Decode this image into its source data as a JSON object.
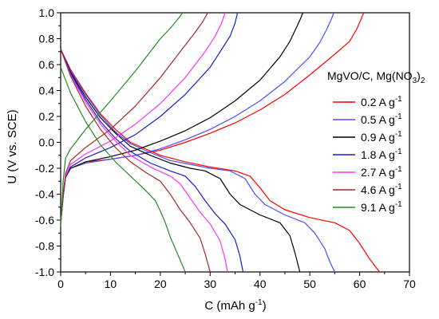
{
  "chart_data": {
    "type": "line",
    "title": "",
    "xlabel": "C (mAh g",
    "xlabel_sup": "-1",
    "xlabel_tail": ")",
    "ylabel": "U (V vs. SCE)",
    "xlim": [
      0,
      70
    ],
    "ylim": [
      -1.0,
      1.0
    ],
    "x_ticks": [
      0,
      10,
      20,
      30,
      40,
      50,
      60,
      70
    ],
    "x_tick_labels": [
      "0",
      "10",
      "20",
      "30",
      "40",
      "50",
      "60",
      "70"
    ],
    "y_ticks": [
      -1.0,
      -0.8,
      -0.6,
      -0.4,
      -0.2,
      0.0,
      0.2,
      0.4,
      0.6,
      0.8,
      1.0
    ],
    "y_tick_labels": [
      "-1.0",
      "-0.8",
      "-0.6",
      "-0.4",
      "-0.2",
      "0.0",
      "0.2",
      "0.4",
      "0.6",
      "0.8",
      "1.0"
    ],
    "grid": false,
    "legend_position": "right",
    "legend_title": {
      "prefix": "MgVO/C, Mg(NO",
      "sub1": "3",
      "mid": ")",
      "sub2": "2"
    },
    "unit_text": "A g",
    "unit_sup": "-1",
    "series": [
      {
        "name": "0.2",
        "color": "#ff0000",
        "discharge": [
          [
            0,
            0.72
          ],
          [
            2,
            0.56
          ],
          [
            5,
            0.38
          ],
          [
            8,
            0.22
          ],
          [
            11,
            0.1
          ],
          [
            14,
            0.0
          ],
          [
            17,
            -0.05
          ],
          [
            20,
            -0.1
          ],
          [
            25,
            -0.15
          ],
          [
            30,
            -0.19
          ],
          [
            35,
            -0.22
          ],
          [
            38,
            -0.26
          ],
          [
            40,
            -0.35
          ],
          [
            42,
            -0.45
          ],
          [
            45,
            -0.52
          ],
          [
            50,
            -0.58
          ],
          [
            55,
            -0.62
          ],
          [
            58,
            -0.68
          ],
          [
            60,
            -0.78
          ],
          [
            62,
            -0.9
          ],
          [
            64,
            -1.0
          ]
        ],
        "charge": [
          [
            0,
            -0.6
          ],
          [
            0.5,
            -0.4
          ],
          [
            1,
            -0.25
          ],
          [
            2,
            -0.2
          ],
          [
            5,
            -0.15
          ],
          [
            10,
            -0.13
          ],
          [
            15,
            -0.1
          ],
          [
            20,
            -0.06
          ],
          [
            25,
            0.0
          ],
          [
            30,
            0.07
          ],
          [
            35,
            0.15
          ],
          [
            40,
            0.25
          ],
          [
            45,
            0.37
          ],
          [
            50,
            0.52
          ],
          [
            55,
            0.68
          ],
          [
            58,
            0.78
          ],
          [
            59.5,
            0.88
          ],
          [
            60.3,
            0.95
          ],
          [
            60.8,
            1.0
          ]
        ]
      },
      {
        "name": "0.5",
        "color": "#4d4dff",
        "discharge": [
          [
            0,
            0.72
          ],
          [
            2,
            0.55
          ],
          [
            5,
            0.37
          ],
          [
            8,
            0.21
          ],
          [
            11,
            0.08
          ],
          [
            14,
            -0.01
          ],
          [
            18,
            -0.08
          ],
          [
            22,
            -0.14
          ],
          [
            26,
            -0.17
          ],
          [
            30,
            -0.2
          ],
          [
            34,
            -0.22
          ],
          [
            37,
            -0.28
          ],
          [
            39,
            -0.4
          ],
          [
            41,
            -0.48
          ],
          [
            45,
            -0.56
          ],
          [
            49,
            -0.62
          ],
          [
            51,
            -0.7
          ],
          [
            53,
            -0.82
          ],
          [
            54,
            -0.92
          ],
          [
            55,
            -1.0
          ]
        ],
        "charge": [
          [
            0,
            -0.62
          ],
          [
            0.5,
            -0.4
          ],
          [
            1,
            -0.25
          ],
          [
            2,
            -0.2
          ],
          [
            5,
            -0.16
          ],
          [
            10,
            -0.13
          ],
          [
            15,
            -0.1
          ],
          [
            20,
            -0.05
          ],
          [
            25,
            0.02
          ],
          [
            30,
            0.1
          ],
          [
            35,
            0.2
          ],
          [
            40,
            0.32
          ],
          [
            45,
            0.47
          ],
          [
            50,
            0.66
          ],
          [
            52,
            0.77
          ],
          [
            53.5,
            0.88
          ],
          [
            54.3,
            0.95
          ],
          [
            54.8,
            1.0
          ]
        ]
      },
      {
        "name": "0.9",
        "color": "#000000",
        "discharge": [
          [
            0,
            0.72
          ],
          [
            2,
            0.54
          ],
          [
            5,
            0.35
          ],
          [
            8,
            0.19
          ],
          [
            11,
            0.07
          ],
          [
            14,
            -0.03
          ],
          [
            18,
            -0.1
          ],
          [
            22,
            -0.16
          ],
          [
            26,
            -0.2
          ],
          [
            29,
            -0.22
          ],
          [
            32,
            -0.28
          ],
          [
            34,
            -0.4
          ],
          [
            36,
            -0.48
          ],
          [
            40,
            -0.56
          ],
          [
            44,
            -0.62
          ],
          [
            46,
            -0.72
          ],
          [
            47,
            -0.85
          ],
          [
            48,
            -1.0
          ]
        ],
        "charge": [
          [
            0,
            -0.63
          ],
          [
            0.5,
            -0.42
          ],
          [
            1,
            -0.27
          ],
          [
            2,
            -0.2
          ],
          [
            5,
            -0.15
          ],
          [
            10,
            -0.11
          ],
          [
            15,
            -0.06
          ],
          [
            20,
            0.01
          ],
          [
            25,
            0.09
          ],
          [
            30,
            0.19
          ],
          [
            35,
            0.32
          ],
          [
            40,
            0.48
          ],
          [
            44,
            0.66
          ],
          [
            46,
            0.78
          ],
          [
            47.5,
            0.9
          ],
          [
            48.2,
            0.96
          ],
          [
            48.6,
            1.0
          ]
        ]
      },
      {
        "name": "1.8",
        "color": "#1a1acc",
        "discharge": [
          [
            0,
            0.72
          ],
          [
            2,
            0.53
          ],
          [
            5,
            0.33
          ],
          [
            8,
            0.16
          ],
          [
            11,
            0.03
          ],
          [
            14,
            -0.07
          ],
          [
            18,
            -0.16
          ],
          [
            22,
            -0.22
          ],
          [
            25,
            -0.26
          ],
          [
            27,
            -0.34
          ],
          [
            29,
            -0.45
          ],
          [
            31,
            -0.55
          ],
          [
            33,
            -0.63
          ],
          [
            35,
            -0.75
          ],
          [
            36,
            -0.88
          ],
          [
            36.6,
            -1.0
          ]
        ],
        "charge": [
          [
            0,
            -0.63
          ],
          [
            0.5,
            -0.42
          ],
          [
            1,
            -0.27
          ],
          [
            2,
            -0.19
          ],
          [
            5,
            -0.12
          ],
          [
            10,
            -0.04
          ],
          [
            15,
            0.06
          ],
          [
            20,
            0.2
          ],
          [
            25,
            0.37
          ],
          [
            30,
            0.58
          ],
          [
            32,
            0.7
          ],
          [
            34,
            0.82
          ],
          [
            35,
            0.92
          ],
          [
            35.5,
            1.0
          ]
        ]
      },
      {
        "name": "2.7",
        "color": "#ff33ff",
        "discharge": [
          [
            0,
            0.72
          ],
          [
            2,
            0.52
          ],
          [
            5,
            0.31
          ],
          [
            8,
            0.14
          ],
          [
            11,
            0.01
          ],
          [
            14,
            -0.1
          ],
          [
            18,
            -0.19
          ],
          [
            22,
            -0.26
          ],
          [
            24,
            -0.32
          ],
          [
            26,
            -0.43
          ],
          [
            28,
            -0.54
          ],
          [
            30,
            -0.63
          ],
          [
            32,
            -0.76
          ],
          [
            33,
            -0.9
          ],
          [
            33.5,
            -1.0
          ]
        ],
        "charge": [
          [
            0,
            -0.63
          ],
          [
            0.5,
            -0.42
          ],
          [
            1,
            -0.26
          ],
          [
            2,
            -0.17
          ],
          [
            5,
            -0.09
          ],
          [
            10,
            0.01
          ],
          [
            15,
            0.14
          ],
          [
            20,
            0.3
          ],
          [
            25,
            0.5
          ],
          [
            29,
            0.7
          ],
          [
            31,
            0.82
          ],
          [
            32.3,
            0.92
          ],
          [
            33,
            1.0
          ]
        ]
      },
      {
        "name": "4.6",
        "color": "#a52a2a",
        "discharge": [
          [
            0,
            0.72
          ],
          [
            2,
            0.51
          ],
          [
            5,
            0.28
          ],
          [
            8,
            0.1
          ],
          [
            11,
            -0.04
          ],
          [
            14,
            -0.15
          ],
          [
            17,
            -0.23
          ],
          [
            20,
            -0.3
          ],
          [
            22,
            -0.4
          ],
          [
            24,
            -0.52
          ],
          [
            26,
            -0.62
          ],
          [
            28,
            -0.74
          ],
          [
            29,
            -0.86
          ],
          [
            30,
            -1.0
          ]
        ],
        "charge": [
          [
            0,
            -0.64
          ],
          [
            0.5,
            -0.42
          ],
          [
            1,
            -0.24
          ],
          [
            2,
            -0.14
          ],
          [
            5,
            -0.04
          ],
          [
            10,
            0.1
          ],
          [
            15,
            0.28
          ],
          [
            20,
            0.5
          ],
          [
            24,
            0.7
          ],
          [
            27,
            0.85
          ],
          [
            28.5,
            0.93
          ],
          [
            29.5,
            1.0
          ]
        ]
      },
      {
        "name": "9.1",
        "color": "#228b22",
        "discharge": [
          [
            0,
            0.58
          ],
          [
            2,
            0.38
          ],
          [
            5,
            0.16
          ],
          [
            8,
            -0.02
          ],
          [
            11,
            -0.15
          ],
          [
            14,
            -0.26
          ],
          [
            17,
            -0.37
          ],
          [
            19,
            -0.45
          ],
          [
            20,
            -0.53
          ],
          [
            21,
            -0.62
          ],
          [
            22,
            -0.73
          ],
          [
            23,
            -0.82
          ],
          [
            24,
            -0.91
          ],
          [
            25,
            -1.0
          ]
        ],
        "charge": [
          [
            0,
            -0.65
          ],
          [
            0.5,
            -0.3
          ],
          [
            1,
            -0.12
          ],
          [
            2,
            -0.05
          ],
          [
            5,
            0.1
          ],
          [
            10,
            0.32
          ],
          [
            15,
            0.55
          ],
          [
            20,
            0.8
          ],
          [
            22,
            0.88
          ],
          [
            23.5,
            0.95
          ],
          [
            24.5,
            1.0
          ]
        ]
      }
    ]
  }
}
